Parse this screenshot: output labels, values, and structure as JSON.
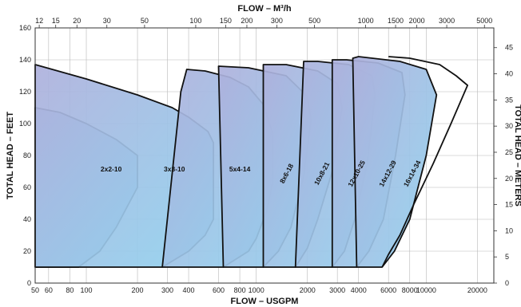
{
  "chart_data": {
    "type": "area",
    "title": "",
    "top_axis": {
      "label": "FLOW – M³/h",
      "ticks": [
        "12",
        "15",
        "20",
        "30",
        "50",
        "100",
        "150",
        "200",
        "300",
        "500",
        "1000",
        "1500",
        "2000",
        "3000",
        "5000"
      ],
      "tick_values": [
        12,
        15,
        20,
        30,
        50,
        100,
        150,
        200,
        300,
        500,
        1000,
        1500,
        2000,
        3000,
        5000
      ],
      "scale": "log"
    },
    "bottom_axis": {
      "label": "FLOW – USGPM",
      "ticks": [
        "50",
        "60",
        "80",
        "100",
        "200",
        "300",
        "400",
        "600",
        "800",
        "1000",
        "2000",
        "3000",
        "4000",
        "6000",
        "8000",
        "10000",
        "20000"
      ],
      "tick_values": [
        50,
        60,
        80,
        100,
        200,
        300,
        400,
        600,
        800,
        1000,
        2000,
        3000,
        4000,
        6000,
        8000,
        10000,
        20000
      ],
      "scale": "log",
      "range": [
        50,
        25000
      ]
    },
    "left_axis": {
      "label": "TOTAL HEAD – FEET",
      "ticks": [
        "0",
        "20",
        "40",
        "60",
        "80",
        "100",
        "120",
        "140",
        "160"
      ],
      "range": [
        0,
        160
      ]
    },
    "right_axis": {
      "label": "TOTAL HEAD – METERS",
      "ticks": [
        "0",
        "5",
        "10",
        "15",
        "20",
        "25",
        "30",
        "35",
        "40",
        "45"
      ],
      "range": [
        0,
        48.77
      ]
    },
    "grid": true,
    "regions": [
      {
        "name": "2x2-10",
        "label_at": [
          140,
          70
        ],
        "points": [
          [
            50,
            110
          ],
          [
            70,
            107
          ],
          [
            100,
            100
          ],
          [
            150,
            90
          ],
          [
            200,
            80
          ],
          [
            200,
            60
          ],
          [
            150,
            35
          ],
          [
            120,
            20
          ],
          [
            90,
            10
          ],
          [
            50,
            10
          ]
        ]
      },
      {
        "name": "3x3-10",
        "label_at": [
          330,
          70
        ],
        "points": [
          [
            50,
            137
          ],
          [
            100,
            128
          ],
          [
            200,
            118
          ],
          [
            320,
            110
          ],
          [
            400,
            104
          ],
          [
            520,
            95
          ],
          [
            560,
            88
          ],
          [
            560,
            40
          ],
          [
            500,
            30
          ],
          [
            400,
            20
          ],
          [
            280,
            10
          ],
          [
            50,
            10
          ]
        ]
      },
      {
        "name": "5x4-14",
        "label_at": [
          800,
          70
        ],
        "points": [
          [
            360,
            120
          ],
          [
            390,
            134
          ],
          [
            500,
            133
          ],
          [
            700,
            129
          ],
          [
            900,
            123
          ],
          [
            1100,
            112
          ],
          [
            1250,
            94
          ],
          [
            1250,
            63
          ],
          [
            1150,
            45
          ],
          [
            1000,
            28
          ],
          [
            900,
            20
          ],
          [
            640,
            10
          ],
          [
            280,
            10
          ]
        ]
      },
      {
        "name": "8x6-18",
        "label_at": [
          1550,
          68
        ],
        "rotate": -62,
        "points": [
          [
            600,
            136
          ],
          [
            900,
            135
          ],
          [
            1500,
            130
          ],
          [
            2000,
            117
          ],
          [
            2100,
            102
          ],
          [
            1900,
            67
          ],
          [
            1600,
            35
          ],
          [
            1350,
            20
          ],
          [
            1100,
            10
          ],
          [
            640,
            10
          ]
        ]
      },
      {
        "name": "10x8-21",
        "label_at": [
          2500,
          68
        ],
        "rotate": -62,
        "points": [
          [
            1100,
            137
          ],
          [
            1500,
            137
          ],
          [
            2300,
            133
          ],
          [
            3000,
            125
          ],
          [
            3200,
            110
          ],
          [
            2800,
            70
          ],
          [
            2300,
            40
          ],
          [
            2000,
            22
          ],
          [
            1700,
            10
          ],
          [
            1100,
            10
          ]
        ]
      },
      {
        "name": "12x10-25",
        "label_at": [
          4000,
          68
        ],
        "rotate": -62,
        "points": [
          [
            1900,
            139
          ],
          [
            2300,
            139
          ],
          [
            3500,
            137
          ],
          [
            4800,
            130
          ],
          [
            5000,
            118
          ],
          [
            4500,
            75
          ],
          [
            3800,
            40
          ],
          [
            3300,
            20
          ],
          [
            2800,
            10
          ],
          [
            1700,
            10
          ]
        ]
      },
      {
        "name": "14x12-29",
        "label_at": [
          6100,
          68
        ],
        "rotate": -62,
        "points": [
          [
            2800,
            140
          ],
          [
            3400,
            140
          ],
          [
            5200,
            138
          ],
          [
            7200,
            132
          ],
          [
            7500,
            118
          ],
          [
            6600,
            80
          ],
          [
            5600,
            40
          ],
          [
            4600,
            20
          ],
          [
            3900,
            10
          ],
          [
            2800,
            10
          ]
        ]
      },
      {
        "name": "16x14-34",
        "label_at": [
          8500,
          68
        ],
        "rotate": -62,
        "points": [
          [
            3700,
            141
          ],
          [
            4000,
            142
          ],
          [
            7000,
            139
          ],
          [
            10000,
            134
          ],
          [
            11500,
            118
          ],
          [
            10000,
            80
          ],
          [
            8000,
            40
          ],
          [
            6500,
            20
          ],
          [
            5500,
            10
          ],
          [
            3900,
            10
          ]
        ]
      },
      {
        "name": "",
        "outline": true,
        "points": [
          [
            6000,
            142
          ],
          [
            8000,
            141
          ],
          [
            12000,
            137
          ],
          [
            15000,
            130
          ],
          [
            17500,
            124
          ],
          [
            14000,
            100
          ],
          [
            11000,
            75
          ],
          [
            8500,
            50
          ],
          [
            7000,
            30
          ],
          [
            6000,
            18
          ],
          [
            5500,
            10
          ]
        ]
      }
    ]
  }
}
